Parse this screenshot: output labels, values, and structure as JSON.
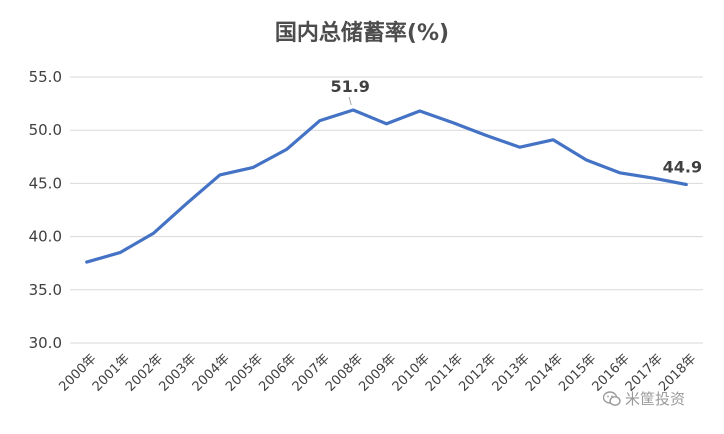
{
  "chart_data": {
    "type": "line",
    "title": "国内总储蓄率(%)",
    "xlabel": "",
    "ylabel": "",
    "categories": [
      "2000年",
      "2001年",
      "2002年",
      "2003年",
      "2004年",
      "2005年",
      "2006年",
      "2007年",
      "2008年",
      "2009年",
      "2010年",
      "2011年",
      "2012年",
      "2013年",
      "2014年",
      "2015年",
      "2016年",
      "2017年",
      "2018年"
    ],
    "values": [
      37.6,
      38.5,
      40.3,
      43.1,
      45.8,
      46.5,
      48.2,
      50.9,
      51.9,
      50.6,
      51.8,
      50.7,
      49.5,
      48.4,
      49.1,
      47.2,
      46.0,
      45.5,
      44.9
    ],
    "ylim": [
      30,
      55
    ],
    "yticks": [
      "30.0",
      "35.0",
      "40.0",
      "45.0",
      "50.0",
      "55.0"
    ],
    "ytick_values": [
      30,
      35,
      40,
      45,
      50,
      55
    ],
    "grid": true,
    "legend": "none",
    "color": "#4472c4",
    "data_labels": [
      {
        "index": 8,
        "text": "51.9"
      },
      {
        "index": 18,
        "text": "44.9"
      }
    ]
  },
  "watermark": {
    "text": "米筐投资",
    "icon": "wechat-icon"
  }
}
